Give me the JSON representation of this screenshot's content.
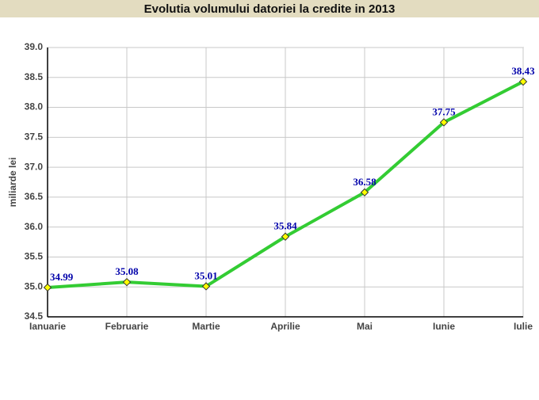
{
  "chart_data": {
    "type": "line",
    "title": "Evolutia volumului datoriei la credite in 2013",
    "y_label": "miliarde lei",
    "categories": [
      "Ianuarie",
      "Februarie",
      "Martie",
      "Aprilie",
      "Mai",
      "Iunie",
      "Iulie"
    ],
    "series": [
      {
        "color": "#33cc33",
        "marker_color": "#ffff00",
        "label_color": "#0000aa",
        "values": [
          34.99,
          35.08,
          35.01,
          35.84,
          36.58,
          37.75,
          38.43
        ]
      }
    ],
    "ylim": [
      34.5,
      39
    ],
    "yticks": [
      {
        "value": 34.5,
        "label": "34.5"
      },
      {
        "value": 35,
        "label": "35.0"
      },
      35.5,
      {
        "value": 36,
        "label": "36.0"
      },
      36.5,
      {
        "value": 37,
        "label": "37.0"
      },
      37.5,
      {
        "value": 38,
        "label": "38.0"
      },
      38.5,
      {
        "value": 39,
        "label": "39.0"
      }
    ],
    "grid": true
  }
}
